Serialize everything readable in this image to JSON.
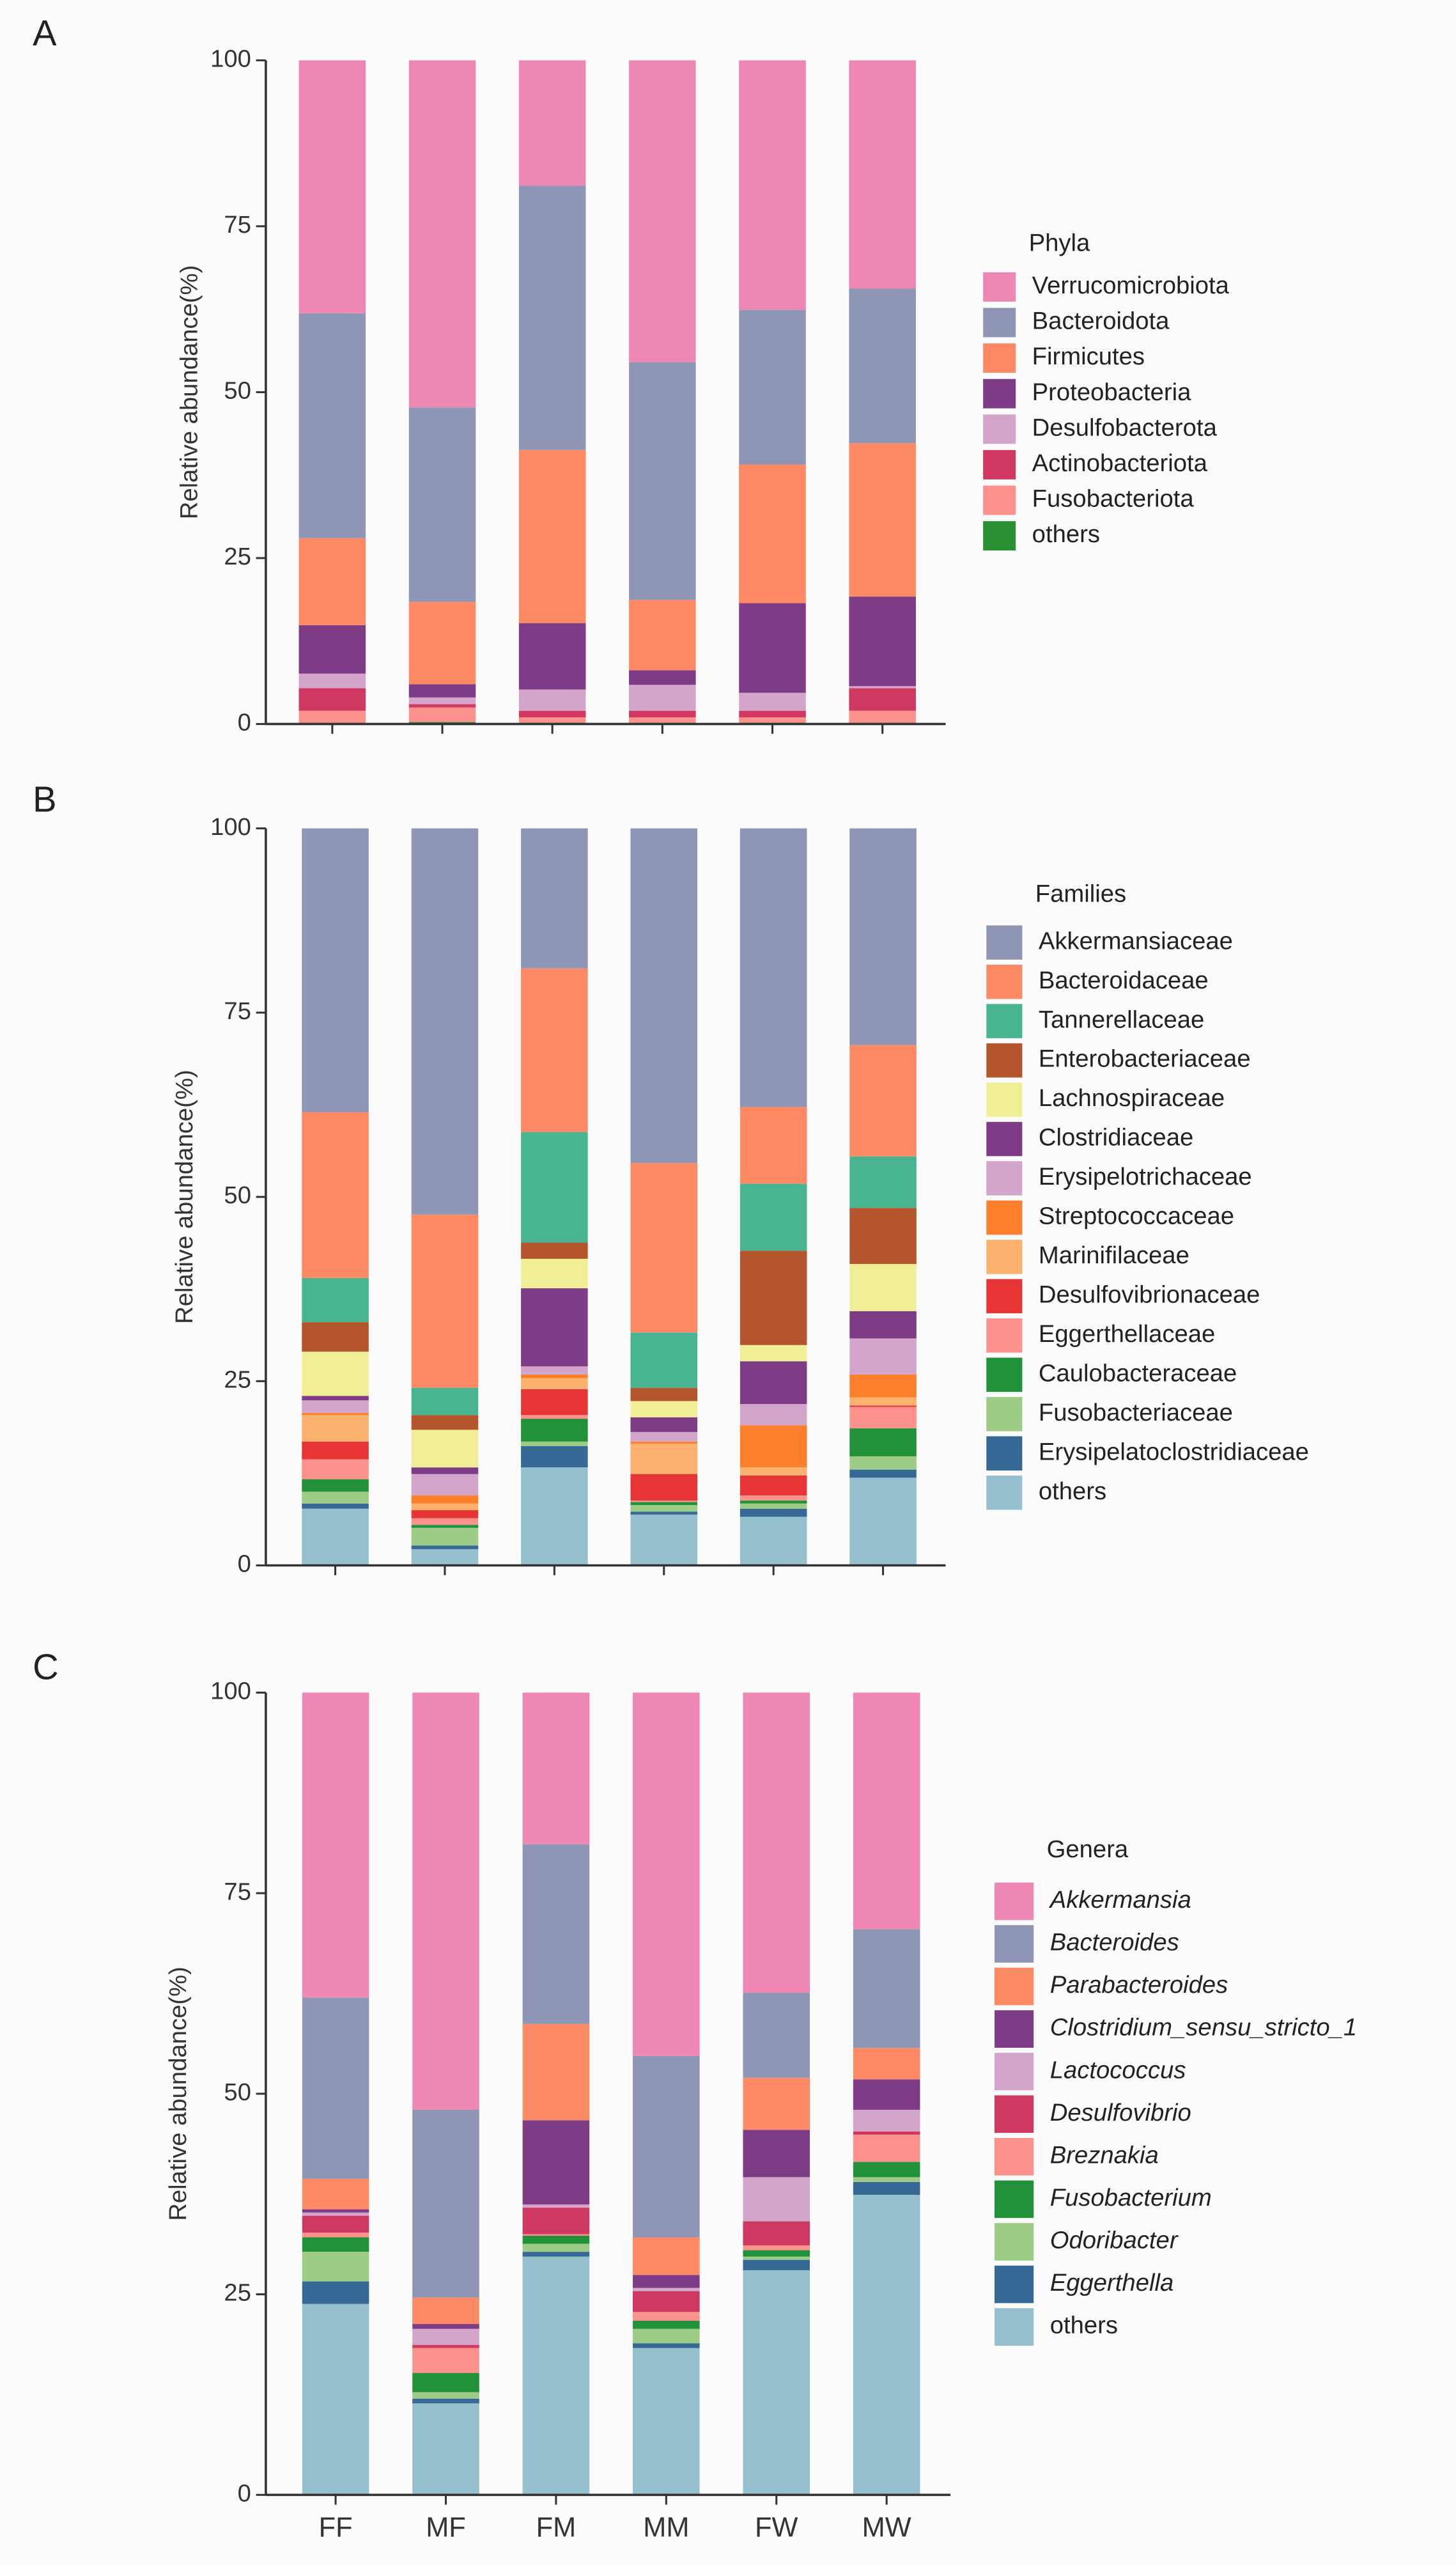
{
  "chart_data": [
    {
      "type": "bar",
      "stacked": true,
      "panel_label": "A",
      "ylabel": "Relative abundance(%)",
      "legend_title": "Phyla",
      "categories": [
        null,
        null,
        null,
        null,
        null,
        null
      ],
      "ylim": [
        0,
        100
      ],
      "yticks": [
        0,
        25,
        50,
        75,
        100
      ],
      "series": [
        {
          "name": "Verrucomicrobiota",
          "color": "#ef87b4",
          "values": [
            38.1,
            52.3,
            18.9,
            45.5,
            37.6,
            34.4
          ]
        },
        {
          "name": "Bacteroidota",
          "color": "#8f95b5",
          "values": [
            33.9,
            29.3,
            39.8,
            35.8,
            23.3,
            23.3
          ]
        },
        {
          "name": "Firmicutes",
          "color": "#fe8a65",
          "values": [
            13.1,
            12.4,
            26.1,
            10.6,
            20.9,
            23.1
          ]
        },
        {
          "name": "Proteobacteria",
          "color": "#7f3c86",
          "values": [
            7.3,
            2.0,
            10.0,
            2.2,
            13.5,
            13.5
          ]
        },
        {
          "name": "Desulfobacterota",
          "color": "#d4a5cb",
          "values": [
            2.2,
            1.0,
            3.2,
            3.9,
            2.7,
            0.3
          ]
        },
        {
          "name": "Actinobacteriota",
          "color": "#cf3861",
          "values": [
            3.4,
            0.5,
            1.0,
            1.0,
            1.0,
            3.4
          ]
        },
        {
          "name": "Fusobacteriota",
          "color": "#fd918b",
          "values": [
            1.8,
            2.2,
            0.8,
            0.8,
            0.8,
            1.8
          ]
        },
        {
          "name": "others",
          "color": "#2b9034",
          "values": [
            0.2,
            0.3,
            0.2,
            0.2,
            0.2,
            0.2
          ]
        }
      ]
    },
    {
      "type": "bar",
      "stacked": true,
      "panel_label": "B",
      "ylabel": "Relative abundance(%)",
      "legend_title": "Families",
      "categories": [
        null,
        null,
        null,
        null,
        null,
        null
      ],
      "ylim": [
        0,
        100
      ],
      "yticks": [
        0,
        25,
        50,
        75,
        100
      ],
      "series": [
        {
          "name": "Akkermansiaceae",
          "color": "#8f95b5",
          "values": [
            38.5,
            52.4,
            19.0,
            45.4,
            37.8,
            29.4
          ]
        },
        {
          "name": "Bacteroidaceae",
          "color": "#fe8a65",
          "values": [
            22.5,
            23.5,
            22.2,
            23.0,
            10.4,
            15.1
          ]
        },
        {
          "name": "Tannerellaceae",
          "color": "#48b590",
          "values": [
            6.0,
            3.7,
            15.0,
            7.5,
            9.1,
            7.0
          ]
        },
        {
          "name": "Enterobacteriaceae",
          "color": "#b5552e",
          "values": [
            4.0,
            2.0,
            2.2,
            1.8,
            12.8,
            7.6
          ]
        },
        {
          "name": "Lachnospiraceae",
          "color": "#f1ef95",
          "values": [
            6.0,
            5.1,
            4.0,
            2.2,
            2.2,
            6.4
          ]
        },
        {
          "name": "Clostridiaceae",
          "color": "#7f3c86",
          "values": [
            0.6,
            0.9,
            10.6,
            2.0,
            5.8,
            3.7
          ]
        },
        {
          "name": "Erysipelotrichaceae",
          "color": "#d4a5cb",
          "values": [
            1.7,
            2.9,
            1.1,
            1.3,
            2.9,
            4.9
          ]
        },
        {
          "name": "Streptococcaceae",
          "color": "#fd7f2c",
          "values": [
            0.3,
            1.1,
            0.5,
            0.3,
            5.7,
            3.1
          ]
        },
        {
          "name": "Marinifilaceae",
          "color": "#fdb16f",
          "values": [
            3.6,
            0.9,
            1.5,
            4.1,
            1.1,
            1.1
          ]
        },
        {
          "name": "Desulfovibrionaceae",
          "color": "#e73535",
          "values": [
            2.4,
            1.1,
            3.5,
            3.6,
            2.7,
            0.2
          ]
        },
        {
          "name": "Eggerthellaceae",
          "color": "#fd918b",
          "values": [
            2.7,
            0.9,
            0.5,
            0.2,
            0.7,
            2.9
          ]
        },
        {
          "name": "Caulobacteraceae",
          "color": "#21913a",
          "values": [
            1.7,
            0.4,
            3.1,
            0.4,
            0.4,
            3.8
          ]
        },
        {
          "name": "Fusobacteriaceae",
          "color": "#9ccc86",
          "values": [
            1.6,
            2.4,
            0.6,
            0.9,
            0.7,
            1.8
          ]
        },
        {
          "name": "Erysipelatoclostridiaceae",
          "color": "#376996",
          "values": [
            0.7,
            0.5,
            2.9,
            0.4,
            1.1,
            1.1
          ]
        },
        {
          "name": "others",
          "color": "#97c0cf",
          "values": [
            7.7,
            2.2,
            13.3,
            6.9,
            6.6,
            11.9
          ]
        }
      ]
    },
    {
      "type": "bar",
      "stacked": true,
      "panel_label": "C",
      "ylabel": "Relative abundance(%)",
      "legend_title": "Genera",
      "categories": [
        "FF",
        "MF",
        "FM",
        "MM",
        "FW",
        "MW"
      ],
      "ylim": [
        0,
        100
      ],
      "yticks": [
        0,
        25,
        50,
        75,
        100
      ],
      "series": [
        {
          "name": "Akkermansia",
          "color": "#ef87b4",
          "values": [
            38.0,
            52.0,
            18.9,
            45.3,
            37.4,
            29.5
          ]
        },
        {
          "name": "Bacteroides",
          "color": "#8f95b5",
          "values": [
            22.6,
            23.4,
            22.4,
            22.6,
            10.6,
            14.8
          ]
        },
        {
          "name": "Parabacteroides",
          "color": "#fe8a65",
          "values": [
            3.8,
            3.3,
            12.0,
            4.7,
            6.5,
            3.9
          ]
        },
        {
          "name": "Clostridium_sensu_stricto_1",
          "color": "#7f3c86",
          "values": [
            0.4,
            0.6,
            10.5,
            1.6,
            5.9,
            3.8
          ]
        },
        {
          "name": "Lactococcus",
          "color": "#d4a5cb",
          "values": [
            0.4,
            2.0,
            0.4,
            0.4,
            5.5,
            2.7
          ]
        },
        {
          "name": "Desulfovibrio",
          "color": "#cf3861",
          "values": [
            2.1,
            0.4,
            3.3,
            2.6,
            3.0,
            0.4
          ]
        },
        {
          "name": "Breznakia",
          "color": "#fd918b",
          "values": [
            0.6,
            3.1,
            0.2,
            1.1,
            0.6,
            3.4
          ]
        },
        {
          "name": "Fusobacterium",
          "color": "#21913a",
          "values": [
            1.8,
            2.4,
            1.0,
            1.0,
            0.8,
            1.9
          ]
        },
        {
          "name": "Odoribacter",
          "color": "#9ccc86",
          "values": [
            3.7,
            0.8,
            1.0,
            1.8,
            0.4,
            0.6
          ]
        },
        {
          "name": "Eggerthella",
          "color": "#376996",
          "values": [
            2.8,
            0.6,
            0.6,
            0.6,
            1.3,
            1.6
          ]
        },
        {
          "name": "others",
          "color": "#97c0cf",
          "values": [
            23.8,
            11.4,
            29.7,
            18.3,
            28.0,
            37.4
          ]
        }
      ]
    }
  ]
}
